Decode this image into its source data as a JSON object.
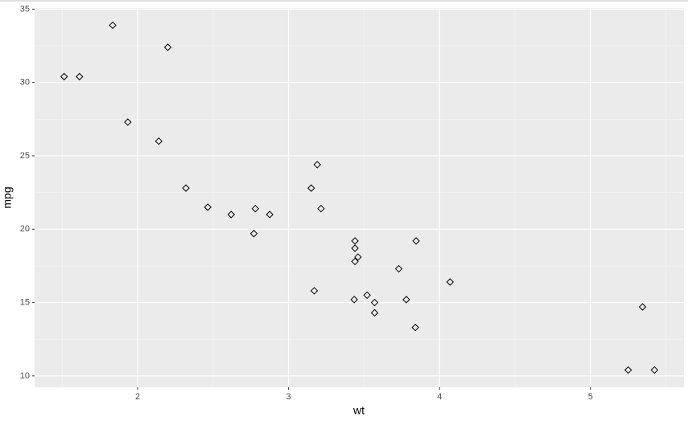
{
  "chart_data": {
    "type": "scatter",
    "x_label": "wt",
    "y_label": "mpg",
    "x": [
      2.62,
      2.875,
      2.32,
      3.215,
      3.44,
      3.46,
      3.57,
      3.19,
      3.15,
      3.44,
      3.44,
      4.07,
      3.73,
      3.78,
      5.25,
      5.424,
      5.345,
      2.2,
      1.615,
      1.835,
      2.465,
      3.52,
      3.435,
      3.84,
      3.845,
      1.935,
      2.14,
      1.513,
      3.17,
      2.77,
      3.57,
      2.78
    ],
    "y": [
      21.0,
      21.0,
      22.8,
      21.4,
      18.7,
      18.1,
      14.3,
      24.4,
      22.8,
      19.2,
      17.8,
      16.4,
      17.3,
      15.2,
      10.4,
      10.4,
      14.7,
      32.4,
      30.4,
      33.9,
      21.5,
      15.5,
      15.2,
      13.3,
      19.2,
      27.3,
      26.0,
      30.4,
      15.8,
      19.7,
      15.0,
      21.4
    ],
    "color": "#000000",
    "xlim": [
      1.3175,
      5.6196
    ],
    "ylim": [
      9.225,
      35.075
    ],
    "xticks": [
      2,
      3,
      4,
      5
    ],
    "yticks": [
      10,
      15,
      20,
      25,
      30,
      35
    ],
    "grid": true
  }
}
